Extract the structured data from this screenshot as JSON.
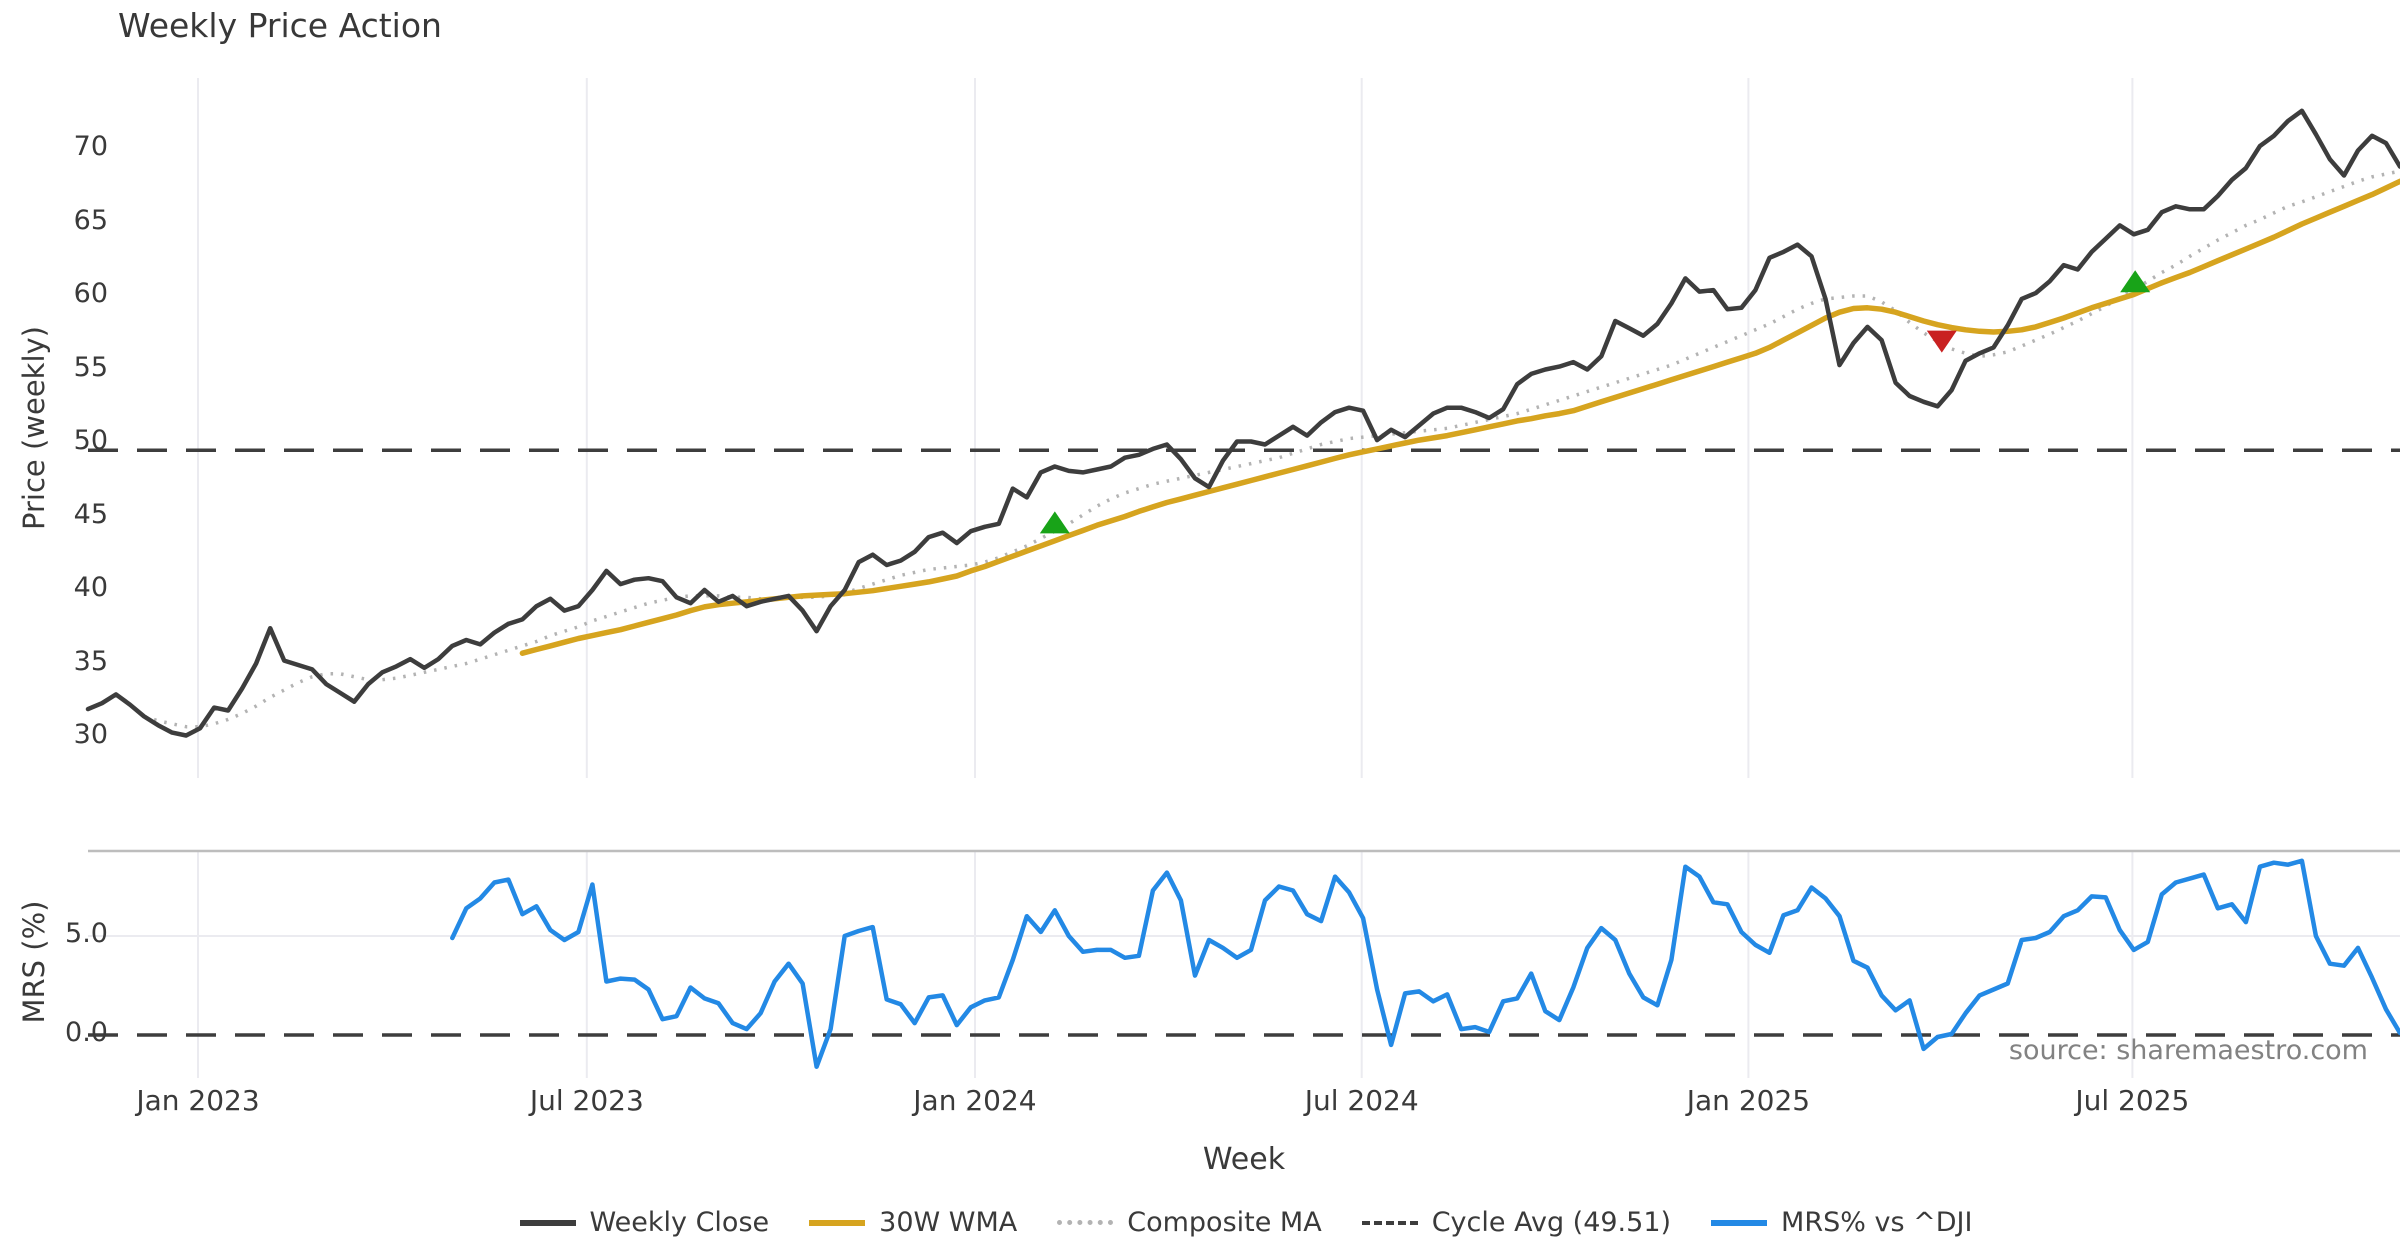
{
  "title": "Weekly Price Action",
  "source_note": "source: sharemaestro.com",
  "colors": {
    "weekly_close": "#3d3d3d",
    "wma": "#d6a41f",
    "composite": "#b3b3b3",
    "cycle_avg": "#3d3d3d",
    "mrs": "#2389e5",
    "buy_marker": "#18a318",
    "sell_marker": "#c92121",
    "gridline": "#ebebf0",
    "panel_spine": "#bdbdbd",
    "text": "#3a3a3a",
    "source_text": "#828282"
  },
  "x_axis": {
    "label": "Week",
    "ticks": [
      {
        "label": "Jan 2023",
        "week": 7.85
      },
      {
        "label": "Jul 2023",
        "week": 35.6
      },
      {
        "label": "Jan 2024",
        "week": 63.3
      },
      {
        "label": "Jul 2024",
        "week": 90.9
      },
      {
        "label": "Jan 2025",
        "week": 118.5
      },
      {
        "label": "Jul 2025",
        "week": 145.9
      }
    ],
    "total_weeks": 165
  },
  "legend": {
    "items": [
      {
        "label": "Weekly Close",
        "swatch": "solid-dark"
      },
      {
        "label": "30W WMA",
        "swatch": "solid-gold"
      },
      {
        "label": "Composite MA",
        "swatch": "dotted-gray"
      },
      {
        "label": "Cycle Avg (49.51)",
        "swatch": "dashed-dark"
      },
      {
        "label": "MRS% vs ^DJI",
        "swatch": "solid-blue"
      }
    ]
  },
  "chart_data": [
    {
      "panel": "price",
      "type": "line",
      "ylabel": "Price (weekly)",
      "yticks": [
        30,
        35,
        40,
        45,
        50,
        55,
        60,
        65,
        70
      ],
      "ylim": [
        27.4,
        74.8
      ],
      "grid": "vertical-only",
      "reference_line": {
        "name": "Cycle Avg (49.51)",
        "value": 49.51,
        "style": "dashed"
      },
      "markers": [
        {
          "name": "buy-signal",
          "shape": "triangle-up",
          "week": 69,
          "value": 44.6
        },
        {
          "name": "sell-signal",
          "shape": "triangle-down",
          "week": 132.3,
          "value": 56.9
        },
        {
          "name": "buy-signal",
          "shape": "triangle-up",
          "week": 146.1,
          "value": 61.0
        }
      ],
      "series": [
        {
          "name": "Weekly Close",
          "style": "solid",
          "start_week": 0,
          "values": [
            31.9,
            32.3,
            32.9,
            32.2,
            31.4,
            30.8,
            30.3,
            30.1,
            30.6,
            32.0,
            31.8,
            33.3,
            35.0,
            37.4,
            35.2,
            34.9,
            34.6,
            33.6,
            33.0,
            32.4,
            33.6,
            34.4,
            34.8,
            35.3,
            34.7,
            35.3,
            36.2,
            36.6,
            36.3,
            37.1,
            37.7,
            38.0,
            38.9,
            39.4,
            38.6,
            38.9,
            40.0,
            41.3,
            40.4,
            40.7,
            40.8,
            40.6,
            39.5,
            39.1,
            40.0,
            39.2,
            39.6,
            38.9,
            39.2,
            39.4,
            39.6,
            38.6,
            37.2,
            38.9,
            40.0,
            41.9,
            42.4,
            41.7,
            42.0,
            42.6,
            43.6,
            43.9,
            43.2,
            44.0,
            44.3,
            44.5,
            46.9,
            46.3,
            48.0,
            48.4,
            48.1,
            48.0,
            48.2,
            48.4,
            49.0,
            49.2,
            49.6,
            49.9,
            48.9,
            47.6,
            47.0,
            48.8,
            50.1,
            50.1,
            49.9,
            50.5,
            51.1,
            50.5,
            51.4,
            52.1,
            52.4,
            52.2,
            50.2,
            50.9,
            50.4,
            51.2,
            52.0,
            52.4,
            52.4,
            52.1,
            51.7,
            52.3,
            54.0,
            54.7,
            55.0,
            55.2,
            55.5,
            55.0,
            55.9,
            58.3,
            57.8,
            57.3,
            58.1,
            59.5,
            61.2,
            60.3,
            60.4,
            59.1,
            59.2,
            60.4,
            62.6,
            63.0,
            63.5,
            62.7,
            59.8,
            55.3,
            56.8,
            57.9,
            57.0,
            54.1,
            53.2,
            52.8,
            52.5,
            53.6,
            55.6,
            56.1,
            56.5,
            58.0,
            59.8,
            60.2,
            61.0,
            62.1,
            61.8,
            63.0,
            63.9,
            64.8,
            64.2,
            64.5,
            65.7,
            66.1,
            65.9,
            65.9,
            66.8,
            67.9,
            68.7,
            70.2,
            70.9,
            71.9,
            72.6,
            71.0,
            69.3,
            68.2,
            69.9,
            70.9,
            70.4,
            68.8
          ]
        },
        {
          "name": "30W WMA",
          "style": "solid",
          "start_week": 31,
          "values": [
            35.7,
            35.95,
            36.2,
            36.45,
            36.7,
            36.9,
            37.1,
            37.3,
            37.55,
            37.8,
            38.05,
            38.3,
            38.6,
            38.85,
            39.0,
            39.1,
            39.2,
            39.3,
            39.4,
            39.5,
            39.6,
            39.65,
            39.7,
            39.75,
            39.85,
            39.95,
            40.1,
            40.25,
            40.4,
            40.55,
            40.75,
            40.95,
            41.3,
            41.6,
            41.95,
            42.3,
            42.65,
            43.0,
            43.35,
            43.7,
            44.05,
            44.4,
            44.7,
            45.0,
            45.35,
            45.65,
            45.95,
            46.2,
            46.45,
            46.7,
            46.95,
            47.2,
            47.45,
            47.7,
            47.95,
            48.2,
            48.45,
            48.7,
            48.95,
            49.2,
            49.4,
            49.6,
            49.8,
            50.0,
            50.2,
            50.35,
            50.5,
            50.7,
            50.9,
            51.1,
            51.3,
            51.5,
            51.65,
            51.85,
            52.0,
            52.2,
            52.5,
            52.8,
            53.1,
            53.4,
            53.7,
            54.0,
            54.3,
            54.6,
            54.9,
            55.2,
            55.5,
            55.8,
            56.1,
            56.5,
            57.0,
            57.5,
            58.0,
            58.5,
            58.9,
            59.15,
            59.2,
            59.1,
            58.9,
            58.6,
            58.3,
            58.05,
            57.85,
            57.7,
            57.6,
            57.55,
            57.6,
            57.7,
            57.9,
            58.2,
            58.5,
            58.85,
            59.2,
            59.5,
            59.8,
            60.1,
            60.5,
            60.9,
            61.25,
            61.6,
            62.0,
            62.4,
            62.8,
            63.2,
            63.6,
            64.0,
            64.45,
            64.9,
            65.3,
            65.7,
            66.1,
            66.5,
            66.9,
            67.35,
            67.8
          ]
        },
        {
          "name": "Composite MA",
          "style": "dotted",
          "start_week": 4,
          "values": [
            31.4,
            31.1,
            30.9,
            30.7,
            30.7,
            30.9,
            31.2,
            31.6,
            32.1,
            32.7,
            33.2,
            33.7,
            34.1,
            34.3,
            34.3,
            34.1,
            33.9,
            33.9,
            34.0,
            34.2,
            34.4,
            34.6,
            34.8,
            35.0,
            35.3,
            35.6,
            35.9,
            36.2,
            36.5,
            36.9,
            37.2,
            37.5,
            37.9,
            38.2,
            38.5,
            38.8,
            39.1,
            39.3,
            39.5,
            39.6,
            39.6,
            39.6,
            39.5,
            39.5,
            39.4,
            39.4,
            39.4,
            39.5,
            39.5,
            39.6,
            39.8,
            40.1,
            40.4,
            40.7,
            41.0,
            41.2,
            41.4,
            41.5,
            41.6,
            41.7,
            41.9,
            42.2,
            42.6,
            43.0,
            43.5,
            44.0,
            44.5,
            45.1,
            45.7,
            46.2,
            46.6,
            46.9,
            47.2,
            47.4,
            47.6,
            47.8,
            48.0,
            48.2,
            48.4,
            48.6,
            48.8,
            49.0,
            49.3,
            49.6,
            49.9,
            50.1,
            50.3,
            50.4,
            50.5,
            50.6,
            50.7,
            50.8,
            50.9,
            51.0,
            51.2,
            51.4,
            51.6,
            51.8,
            52.0,
            52.3,
            52.6,
            52.9,
            53.2,
            53.5,
            53.8,
            54.1,
            54.4,
            54.7,
            55.0,
            55.3,
            55.7,
            56.1,
            56.5,
            56.9,
            57.3,
            57.7,
            58.1,
            58.6,
            59.1,
            59.5,
            59.8,
            59.9,
            60.0,
            60.0,
            59.6,
            59.0,
            58.2,
            57.5,
            56.9,
            56.4,
            56.1,
            55.9,
            56.0,
            56.2,
            56.6,
            57.0,
            57.4,
            57.85,
            58.3,
            58.8,
            59.3,
            59.9,
            60.45,
            61.0,
            61.6,
            62.1,
            62.7,
            63.25,
            63.8,
            64.3,
            64.8,
            65.2,
            65.65,
            66.1,
            66.4,
            66.75,
            67.1,
            67.45,
            67.8,
            68.1,
            68.3,
            68.5
          ]
        }
      ]
    },
    {
      "panel": "mrs",
      "type": "line",
      "ylabel": "MRS (%)",
      "yticks": [
        0.0,
        5.0
      ],
      "ytick_labels": [
        "0.0",
        "5.0"
      ],
      "ylim": [
        -2.2,
        9.3
      ],
      "grid": "vertical-only",
      "reference_line": {
        "name": "zero",
        "value": 0.0,
        "style": "dashed"
      },
      "series": [
        {
          "name": "MRS% vs ^DJI",
          "style": "solid",
          "start_week": 26,
          "values": [
            4.9,
            6.4,
            6.9,
            7.7,
            7.85,
            6.1,
            6.5,
            5.3,
            4.8,
            5.2,
            7.6,
            2.7,
            2.85,
            2.8,
            2.3,
            0.8,
            0.95,
            2.4,
            1.85,
            1.6,
            0.6,
            0.3,
            1.1,
            2.7,
            3.6,
            2.6,
            -1.6,
            0.3,
            5.0,
            5.25,
            5.45,
            1.8,
            1.55,
            0.6,
            1.9,
            2.0,
            0.5,
            1.4,
            1.75,
            1.9,
            3.8,
            6.0,
            5.2,
            6.3,
            5.0,
            4.2,
            4.3,
            4.3,
            3.9,
            4.0,
            7.3,
            8.2,
            6.8,
            3.0,
            4.8,
            4.4,
            3.9,
            4.3,
            6.8,
            7.5,
            7.3,
            6.1,
            5.75,
            8.0,
            7.2,
            5.9,
            2.3,
            -0.5,
            2.1,
            2.2,
            1.7,
            2.05,
            0.3,
            0.4,
            0.15,
            1.7,
            1.85,
            3.1,
            1.2,
            0.75,
            2.4,
            4.4,
            5.4,
            4.8,
            3.1,
            1.9,
            1.5,
            3.8,
            8.5,
            8.0,
            6.7,
            6.6,
            5.2,
            4.55,
            4.15,
            6.05,
            6.3,
            7.45,
            6.9,
            6.0,
            3.75,
            3.4,
            2.0,
            1.25,
            1.75,
            -0.7,
            -0.1,
            0.05,
            1.1,
            2.0,
            2.3,
            2.6,
            4.8,
            4.9,
            5.2,
            6.0,
            6.3,
            7.0,
            6.95,
            5.3,
            4.3,
            4.7,
            7.1,
            7.7,
            7.9,
            8.1,
            6.4,
            6.6,
            5.7,
            8.5,
            8.7,
            8.6,
            8.8,
            5.0,
            3.6,
            3.5,
            4.4,
            2.9,
            1.3,
            0.1
          ]
        }
      ]
    }
  ]
}
